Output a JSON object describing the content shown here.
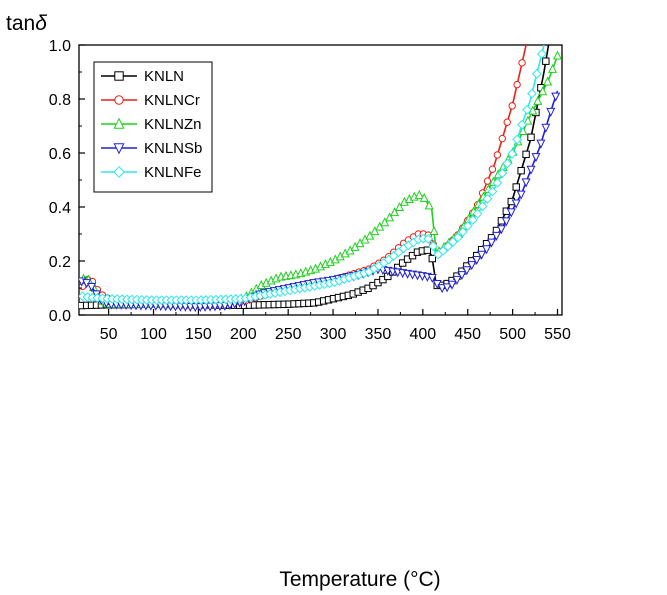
{
  "chart_data": {
    "type": "line",
    "xlabel": "Temperature (°C)",
    "ylabel_main": "tan",
    "ylabel_symbol": "δ",
    "xlim": [
      17,
      555
    ],
    "ylim": [
      0,
      1.0
    ],
    "x_ticks": [
      50,
      100,
      150,
      200,
      250,
      300,
      350,
      400,
      450,
      500,
      550
    ],
    "x_tick_labels": [
      "50",
      "100",
      "150",
      "200",
      "250",
      "300",
      "350",
      "400",
      "450",
      "500",
      "550"
    ],
    "y_ticks": [
      0,
      0.2,
      0.4,
      0.6,
      0.8,
      1.0
    ],
    "y_tick_labels": [
      "0.0",
      "0.2",
      "0.4",
      "0.6",
      "0.8",
      "1.0"
    ],
    "legend_position": "top-left",
    "grid": false,
    "series": [
      {
        "name": "KNLN",
        "color": "#000000",
        "marker": "square",
        "points": [
          [
            20,
            0.035
          ],
          [
            50,
            0.038
          ],
          [
            100,
            0.04
          ],
          [
            150,
            0.038
          ],
          [
            200,
            0.036
          ],
          [
            250,
            0.04
          ],
          [
            280,
            0.045
          ],
          [
            300,
            0.06
          ],
          [
            320,
            0.075
          ],
          [
            340,
            0.1
          ],
          [
            360,
            0.14
          ],
          [
            380,
            0.2
          ],
          [
            395,
            0.235
          ],
          [
            405,
            0.24
          ],
          [
            410,
            0.22
          ],
          [
            415,
            0.11
          ],
          [
            420,
            0.108
          ],
          [
            430,
            0.12
          ],
          [
            440,
            0.15
          ],
          [
            460,
            0.22
          ],
          [
            480,
            0.3
          ],
          [
            500,
            0.43
          ],
          [
            520,
            0.65
          ],
          [
            535,
            0.9
          ],
          [
            540,
            1.0
          ]
        ]
      },
      {
        "name": "KNLNCr",
        "color": "#e8211b",
        "marker": "circle",
        "points": [
          [
            20,
            0.1
          ],
          [
            25,
            0.13
          ],
          [
            30,
            0.135
          ],
          [
            40,
            0.08
          ],
          [
            50,
            0.06
          ],
          [
            100,
            0.05
          ],
          [
            150,
            0.045
          ],
          [
            200,
            0.05
          ],
          [
            230,
            0.08
          ],
          [
            250,
            0.1
          ],
          [
            300,
            0.13
          ],
          [
            340,
            0.17
          ],
          [
            360,
            0.21
          ],
          [
            380,
            0.27
          ],
          [
            395,
            0.3
          ],
          [
            405,
            0.3
          ],
          [
            410,
            0.28
          ],
          [
            415,
            0.22
          ],
          [
            420,
            0.23
          ],
          [
            440,
            0.3
          ],
          [
            460,
            0.4
          ],
          [
            480,
            0.56
          ],
          [
            500,
            0.78
          ],
          [
            515,
            1.0
          ]
        ]
      },
      {
        "name": "KNLNZn",
        "color": "#20d020",
        "marker": "triangle-up",
        "points": [
          [
            20,
            0.13
          ],
          [
            25,
            0.14
          ],
          [
            30,
            0.12
          ],
          [
            40,
            0.06
          ],
          [
            50,
            0.04
          ],
          [
            100,
            0.04
          ],
          [
            150,
            0.04
          ],
          [
            200,
            0.06
          ],
          [
            220,
            0.11
          ],
          [
            240,
            0.14
          ],
          [
            260,
            0.15
          ],
          [
            280,
            0.17
          ],
          [
            300,
            0.2
          ],
          [
            320,
            0.24
          ],
          [
            340,
            0.29
          ],
          [
            360,
            0.35
          ],
          [
            380,
            0.42
          ],
          [
            395,
            0.445
          ],
          [
            400,
            0.44
          ],
          [
            410,
            0.39
          ],
          [
            415,
            0.23
          ],
          [
            420,
            0.24
          ],
          [
            440,
            0.3
          ],
          [
            460,
            0.4
          ],
          [
            480,
            0.5
          ],
          [
            500,
            0.6
          ],
          [
            520,
            0.74
          ],
          [
            540,
            0.87
          ],
          [
            550,
            0.96
          ]
        ]
      },
      {
        "name": "KNLNSb",
        "color": "#2020d8",
        "marker": "triangle-down",
        "points": [
          [
            20,
            0.125
          ],
          [
            25,
            0.12
          ],
          [
            30,
            0.11
          ],
          [
            40,
            0.06
          ],
          [
            50,
            0.04
          ],
          [
            100,
            0.035
          ],
          [
            150,
            0.03
          ],
          [
            180,
            0.035
          ],
          [
            200,
            0.05
          ],
          [
            220,
            0.08
          ],
          [
            250,
            0.1
          ],
          [
            280,
            0.12
          ],
          [
            300,
            0.13
          ],
          [
            330,
            0.15
          ],
          [
            350,
            0.17
          ],
          [
            370,
            0.16
          ],
          [
            390,
            0.15
          ],
          [
            410,
            0.14
          ],
          [
            420,
            0.1
          ],
          [
            430,
            0.105
          ],
          [
            450,
            0.17
          ],
          [
            470,
            0.24
          ],
          [
            490,
            0.33
          ],
          [
            510,
            0.45
          ],
          [
            530,
            0.62
          ],
          [
            545,
            0.78
          ],
          [
            550,
            0.83
          ]
        ]
      },
      {
        "name": "KNLNFe",
        "color": "#30e8e8",
        "marker": "diamond",
        "points": [
          [
            20,
            0.07
          ],
          [
            30,
            0.065
          ],
          [
            50,
            0.06
          ],
          [
            100,
            0.055
          ],
          [
            150,
            0.055
          ],
          [
            200,
            0.06
          ],
          [
            250,
            0.09
          ],
          [
            300,
            0.12
          ],
          [
            340,
            0.16
          ],
          [
            360,
            0.2
          ],
          [
            380,
            0.25
          ],
          [
            395,
            0.28
          ],
          [
            405,
            0.285
          ],
          [
            410,
            0.27
          ],
          [
            415,
            0.22
          ],
          [
            420,
            0.23
          ],
          [
            440,
            0.29
          ],
          [
            460,
            0.37
          ],
          [
            480,
            0.47
          ],
          [
            500,
            0.6
          ],
          [
            520,
            0.8
          ],
          [
            535,
            1.0
          ]
        ]
      }
    ]
  }
}
